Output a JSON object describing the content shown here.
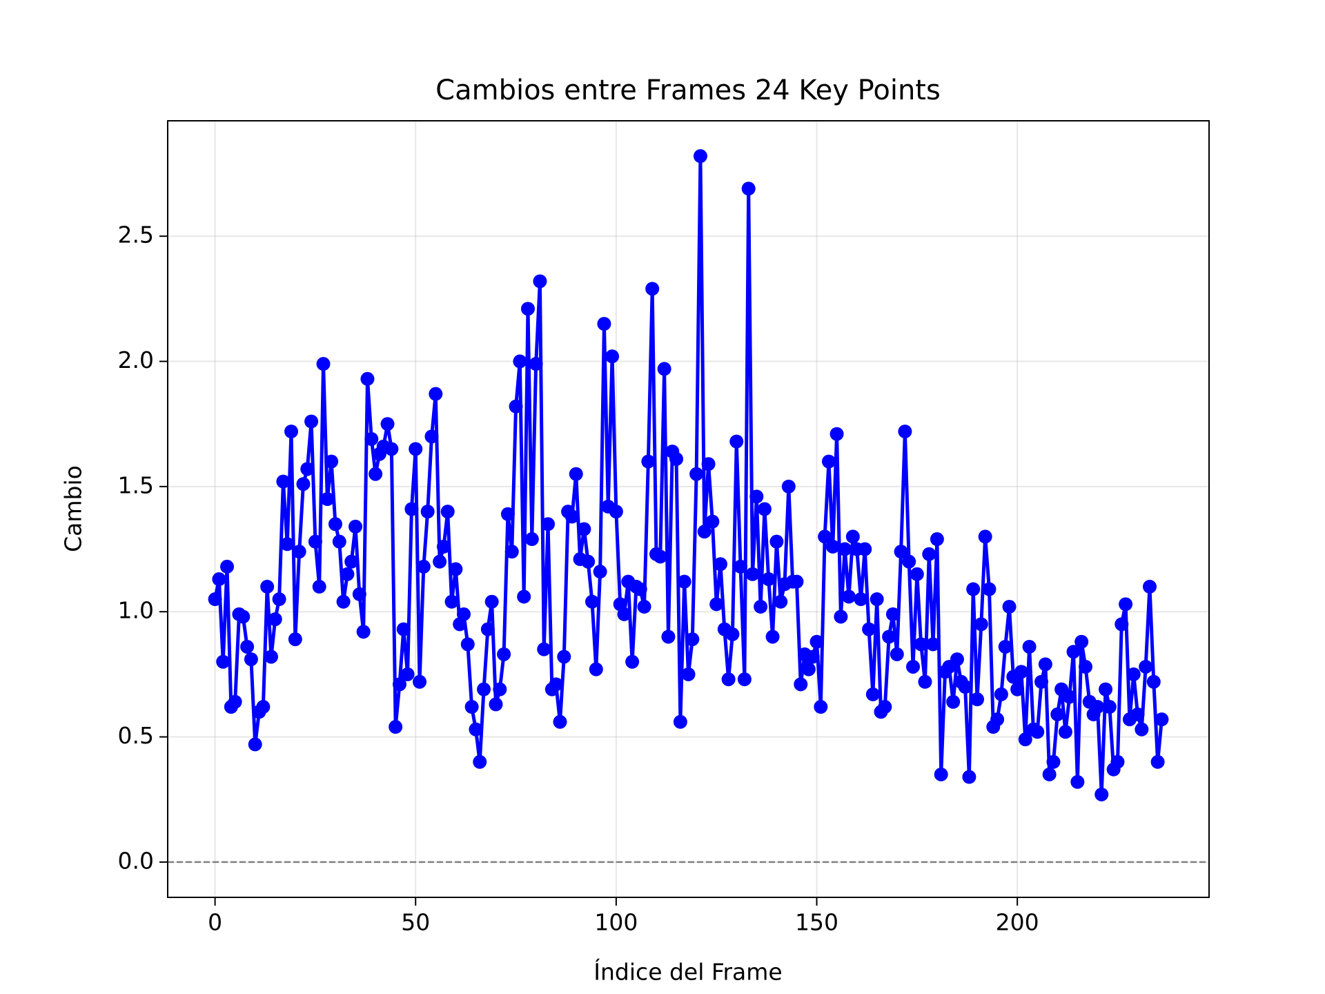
{
  "chart_data": {
    "type": "line",
    "title": "Cambios entre Frames 24 Key Points",
    "xlabel": "Índice del Frame",
    "ylabel": "Cambio",
    "x": [
      0,
      1,
      2,
      3,
      4,
      5,
      6,
      7,
      8,
      9,
      10,
      11,
      12,
      13,
      14,
      15,
      16,
      17,
      18,
      19,
      20,
      21,
      22,
      23,
      24,
      25,
      26,
      27,
      28,
      29,
      30,
      31,
      32,
      33,
      34,
      35,
      36,
      37,
      38,
      39,
      40,
      41,
      42,
      43,
      44,
      45,
      46,
      47,
      48,
      49,
      50,
      51,
      52,
      53,
      54,
      55,
      56,
      57,
      58,
      59,
      60,
      61,
      62,
      63,
      64,
      65,
      66,
      67,
      68,
      69,
      70,
      71,
      72,
      73,
      74,
      75,
      76,
      77,
      78,
      79,
      80,
      81,
      82,
      83,
      84,
      85,
      86,
      87,
      88,
      89,
      90,
      91,
      92,
      93,
      94,
      95,
      96,
      97,
      98,
      99,
      100,
      101,
      102,
      103,
      104,
      105,
      106,
      107,
      108,
      109,
      110,
      111,
      112,
      113,
      114,
      115,
      116,
      117,
      118,
      119,
      120,
      121,
      122,
      123,
      124,
      125,
      126,
      127,
      128,
      129,
      130,
      131,
      132,
      133,
      134,
      135,
      136,
      137,
      138,
      139,
      140,
      141,
      142,
      143,
      144,
      145,
      146,
      147,
      148,
      149,
      150,
      151,
      152,
      153,
      154,
      155,
      156,
      157,
      158,
      159,
      160,
      161,
      162,
      163,
      164,
      165,
      166,
      167,
      168,
      169,
      170,
      171,
      172,
      173,
      174,
      175,
      176,
      177,
      178,
      179,
      180,
      181,
      182,
      183,
      184,
      185,
      186,
      187,
      188,
      189,
      190,
      191,
      192,
      193,
      194,
      195,
      196,
      197,
      198,
      199,
      200,
      201,
      202,
      203,
      204,
      205,
      206,
      207,
      208,
      209,
      210,
      211,
      212,
      213,
      214,
      215,
      216,
      217,
      218,
      219,
      220,
      221,
      222,
      223,
      224,
      225,
      226,
      227,
      228,
      229,
      230,
      231,
      232,
      233,
      234,
      235,
      236
    ],
    "series": [
      {
        "color": "#0000ff",
        "values": [
          1.05,
          1.13,
          0.8,
          1.18,
          0.62,
          0.64,
          0.99,
          0.98,
          0.86,
          0.81,
          0.47,
          0.6,
          0.62,
          1.1,
          0.82,
          0.97,
          1.05,
          1.52,
          1.27,
          1.72,
          0.89,
          1.24,
          1.51,
          1.57,
          1.76,
          1.28,
          1.1,
          1.99,
          1.45,
          1.6,
          1.35,
          1.28,
          1.04,
          1.15,
          1.2,
          1.34,
          1.07,
          0.92,
          1.93,
          1.69,
          1.55,
          1.63,
          1.66,
          1.75,
          1.65,
          0.54,
          0.71,
          0.93,
          0.75,
          1.41,
          1.65,
          0.72,
          1.18,
          1.4,
          1.7,
          1.87,
          1.2,
          1.26,
          1.4,
          1.04,
          1.17,
          0.95,
          0.99,
          0.87,
          0.62,
          0.53,
          0.4,
          0.69,
          0.93,
          1.04,
          0.63,
          0.69,
          0.83,
          1.39,
          1.24,
          1.82,
          2.0,
          1.06,
          2.21,
          1.29,
          1.99,
          2.32,
          0.85,
          1.35,
          0.69,
          0.71,
          0.56,
          0.82,
          1.4,
          1.38,
          1.55,
          1.21,
          1.33,
          1.2,
          1.04,
          0.77,
          1.16,
          2.15,
          1.42,
          2.02,
          1.4,
          1.03,
          0.99,
          1.12,
          0.8,
          1.1,
          1.09,
          1.02,
          1.6,
          2.29,
          1.23,
          1.22,
          1.97,
          0.9,
          1.64,
          1.61,
          0.56,
          1.12,
          0.75,
          0.89,
          1.55,
          2.82,
          1.32,
          1.59,
          1.36,
          1.03,
          1.19,
          0.93,
          0.73,
          0.91,
          1.68,
          1.18,
          0.73,
          2.69,
          1.15,
          1.46,
          1.02,
          1.41,
          1.13,
          0.9,
          1.28,
          1.04,
          1.11,
          1.5,
          1.12,
          1.12,
          0.71,
          0.83,
          0.77,
          0.82,
          0.88,
          0.62,
          1.3,
          1.6,
          1.26,
          1.71,
          0.98,
          1.25,
          1.06,
          1.3,
          1.25,
          1.05,
          1.25,
          0.93,
          0.67,
          1.05,
          0.6,
          0.62,
          0.9,
          0.99,
          0.83,
          1.24,
          1.72,
          1.2,
          0.78,
          1.15,
          0.87,
          0.72,
          1.23,
          0.87,
          1.29,
          0.35,
          0.76,
          0.78,
          0.64,
          0.81,
          0.72,
          0.7,
          0.34,
          1.09,
          0.65,
          0.95,
          1.3,
          1.09,
          0.54,
          0.57,
          0.67,
          0.86,
          1.02,
          0.74,
          0.69,
          0.76,
          0.49,
          0.86,
          0.53,
          0.52,
          0.72,
          0.79,
          0.35,
          0.4,
          0.59,
          0.69,
          0.52,
          0.66,
          0.84,
          0.32,
          0.88,
          0.78,
          0.64,
          0.59,
          0.62,
          0.27,
          0.69,
          0.62,
          0.37,
          0.4,
          0.95,
          1.03,
          0.57,
          0.75,
          0.59,
          0.53,
          0.78,
          1.1,
          0.72,
          0.4,
          0.57
        ]
      }
    ],
    "hline": {
      "value": 0,
      "color": "#808080",
      "style": "dashed"
    },
    "xlim": [
      -11.8,
      247.8
    ],
    "ylim": [
      -0.141,
      2.961
    ],
    "xticks": [
      0,
      50,
      100,
      150,
      200
    ],
    "yticks": [
      {
        "value": 0,
        "label": "0.0"
      },
      0.5,
      {
        "value": 1,
        "label": "1.0"
      },
      1.5,
      {
        "value": 2,
        "label": "2.0"
      },
      2.5
    ],
    "grid": true
  }
}
